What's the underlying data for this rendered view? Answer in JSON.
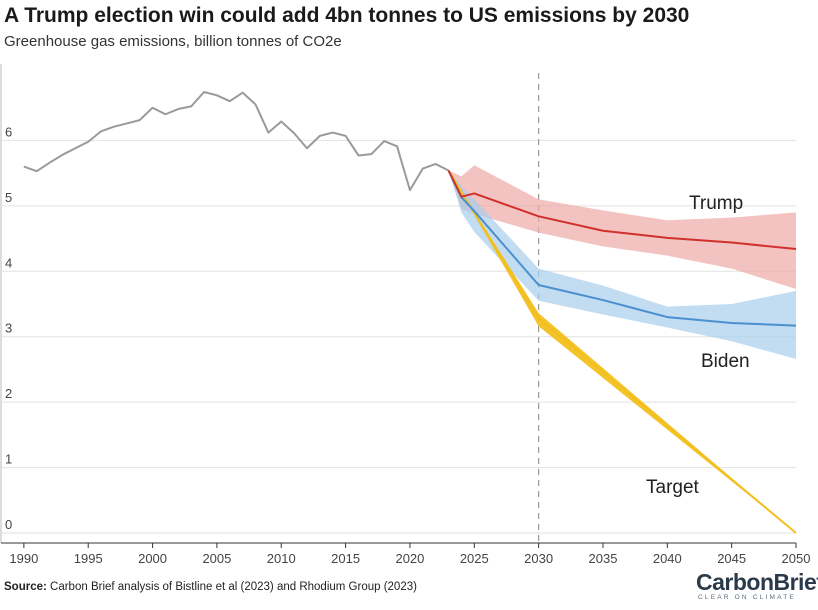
{
  "header": {
    "title": "A Trump election win could add 4bn tonnes to US emissions by 2030",
    "subtitle": "Greenhouse gas emissions, billion tonnes of CO2e"
  },
  "footer": {
    "source_label": "Source:",
    "source_text": "Carbon Brief analysis of Bistline et al (2023) and Rhodium Group (2023)",
    "logo_text": "CarbonBrief",
    "logo_tagline": "CLEAR ON CLIMATE"
  },
  "colors": {
    "historical": "#9a9a9a",
    "trump": "#d0312d",
    "trump_band": "#eda9a6",
    "biden": "#4a90cf",
    "biden_band": "#a8cdeb",
    "target": "#f2c01e",
    "grid": "#e2e2e2",
    "marker": "#999999"
  },
  "chart_data": {
    "type": "line",
    "title": "A Trump election win could add 4bn tonnes to US emissions by 2030",
    "subtitle": "Greenhouse gas emissions, billion tonnes of CO2e",
    "xlim": [
      1989,
      2050
    ],
    "ylim": [
      0,
      7
    ],
    "x_ticks": [
      1990,
      1995,
      2000,
      2005,
      2010,
      2015,
      2020,
      2025,
      2030,
      2035,
      2040,
      2045,
      2050
    ],
    "y_ticks": [
      0,
      1,
      2,
      3,
      4,
      5,
      6
    ],
    "grid": "horizontal",
    "vertical_marker": 2030,
    "series": [
      {
        "key": "historical",
        "x": [
          1990,
          1991,
          1992,
          1993,
          1994,
          1995,
          1996,
          1997,
          1998,
          1999,
          2000,
          2001,
          2002,
          2003,
          2004,
          2005,
          2006,
          2007,
          2008,
          2009,
          2010,
          2011,
          2012,
          2013,
          2014,
          2015,
          2016,
          2017,
          2018,
          2019,
          2020,
          2021,
          2022,
          2023
        ],
        "y": [
          5.6,
          5.53,
          5.66,
          5.78,
          5.88,
          5.98,
          6.14,
          6.21,
          6.26,
          6.31,
          6.5,
          6.4,
          6.48,
          6.52,
          6.74,
          6.69,
          6.6,
          6.73,
          6.55,
          6.12,
          6.29,
          6.11,
          5.88,
          6.07,
          6.12,
          6.07,
          5.77,
          5.79,
          5.99,
          5.91,
          5.24,
          5.57,
          5.64,
          5.54
        ]
      },
      {
        "key": "trump",
        "name": "Trump",
        "x": [
          2023,
          2024,
          2025,
          2030,
          2035,
          2040,
          2045,
          2050
        ],
        "y": [
          5.54,
          5.14,
          5.19,
          4.84,
          4.62,
          4.51,
          4.44,
          4.34
        ],
        "band_upper": [
          5.54,
          5.45,
          5.62,
          5.1,
          4.93,
          4.78,
          4.82,
          4.9
        ],
        "band_lower": [
          5.54,
          4.95,
          4.88,
          4.59,
          4.38,
          4.24,
          4.04,
          3.73
        ]
      },
      {
        "key": "biden",
        "name": "Biden",
        "x": [
          2023,
          2024,
          2025,
          2030,
          2035,
          2040,
          2045,
          2050
        ],
        "y": [
          5.54,
          5.13,
          4.92,
          3.79,
          3.56,
          3.3,
          3.21,
          3.17
        ],
        "band_upper": [
          5.54,
          5.3,
          5.1,
          4.04,
          3.78,
          3.46,
          3.5,
          3.7
        ],
        "band_lower": [
          5.54,
          4.9,
          4.6,
          3.55,
          3.34,
          3.14,
          2.93,
          2.66
        ]
      },
      {
        "key": "target",
        "name": "Target",
        "x": [
          2023,
          2030,
          2050
        ],
        "y": [
          5.54,
          3.28,
          0.0
        ],
        "band_upper": [
          5.54,
          3.36,
          0.0
        ],
        "band_lower": [
          5.54,
          3.16,
          0.0
        ]
      }
    ]
  }
}
